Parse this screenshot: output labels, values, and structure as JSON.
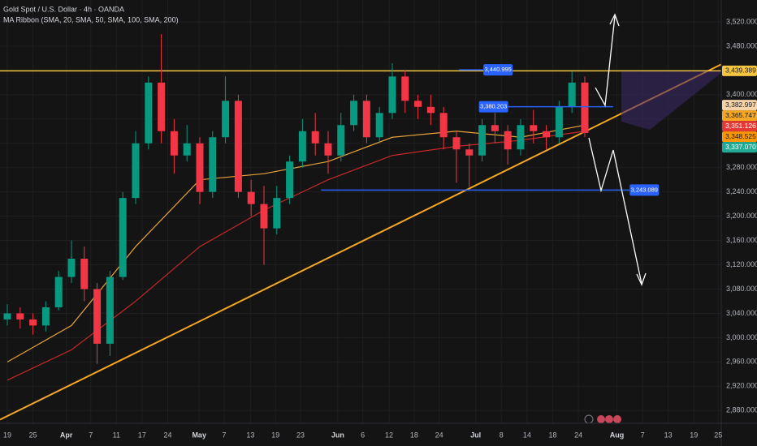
{
  "chart_data": {
    "type": "candlestick",
    "title": "Gold Spot / U.S. Dollar · 4h · OANDA",
    "subtitle": "MA Ribbon (SMA, 20, SMA, 50, SMA, 100, SMA, 200)",
    "x": [
      0,
      2,
      4,
      6,
      8,
      10,
      12,
      14,
      16,
      18,
      20,
      22,
      24,
      26,
      28,
      30,
      32,
      34,
      36,
      38,
      40,
      42,
      44,
      46,
      48,
      50,
      52,
      54,
      56,
      58,
      60,
      62,
      64,
      66,
      68,
      70,
      72,
      74,
      76,
      78,
      80,
      82,
      84,
      86,
      88,
      90
    ],
    "open": [
      3030,
      3040,
      3030,
      3020,
      3050,
      3100,
      3130,
      3080,
      2990,
      3100,
      3230,
      3320,
      3420,
      3340,
      3300,
      3320,
      3240,
      3330,
      3390,
      3240,
      3220,
      3180,
      3230,
      3290,
      3340,
      3320,
      3300,
      3350,
      3390,
      3330,
      3370,
      3430,
      3390,
      3380,
      3370,
      3330,
      3310,
      3300,
      3350,
      3340,
      3310,
      3350,
      3340,
      3330,
      3380,
      3420
    ],
    "high": [
      3055,
      3050,
      3040,
      3060,
      3110,
      3160,
      3150,
      3090,
      3110,
      3240,
      3340,
      3430,
      3500,
      3360,
      3350,
      3330,
      3340,
      3430,
      3400,
      3260,
      3250,
      3250,
      3300,
      3360,
      3370,
      3340,
      3370,
      3400,
      3400,
      3380,
      3452,
      3440,
      3400,
      3400,
      3380,
      3340,
      3320,
      3360,
      3370,
      3350,
      3360,
      3375,
      3350,
      3390,
      3438,
      3430
    ],
    "low": [
      3020,
      3015,
      3005,
      3010,
      3045,
      3090,
      3060,
      2957,
      2970,
      3095,
      3220,
      3310,
      3320,
      3270,
      3290,
      3220,
      3230,
      3320,
      3230,
      3200,
      3120,
      3170,
      3220,
      3280,
      3300,
      3270,
      3290,
      3340,
      3320,
      3320,
      3360,
      3370,
      3360,
      3350,
      3310,
      3255,
      3248,
      3290,
      3320,
      3285,
      3300,
      3320,
      3310,
      3320,
      3370,
      3330
    ],
    "close": [
      3040,
      3030,
      3020,
      3050,
      3100,
      3130,
      3080,
      2990,
      3100,
      3230,
      3320,
      3420,
      3340,
      3300,
      3320,
      3240,
      3330,
      3390,
      3240,
      3220,
      3180,
      3230,
      3290,
      3340,
      3320,
      3300,
      3350,
      3390,
      3330,
      3370,
      3430,
      3390,
      3380,
      3370,
      3330,
      3310,
      3300,
      3350,
      3340,
      3310,
      3350,
      3340,
      3330,
      3380,
      3420,
      3337
    ],
    "up_color": "#089981",
    "down_color": "#f23645",
    "moving_averages": [
      {
        "color": "#e8a23a",
        "x": [
          0,
          10,
          20,
          30,
          40,
          50,
          60,
          70,
          80,
          90
        ],
        "values": [
          2960,
          3020,
          3150,
          3260,
          3270,
          3290,
          3330,
          3340,
          3330,
          3350
        ]
      },
      {
        "color": "#c62828",
        "x": [
          0,
          10,
          20,
          30,
          40,
          50,
          60,
          70,
          80,
          90
        ],
        "values": [
          2930,
          2980,
          3060,
          3150,
          3210,
          3260,
          3300,
          3315,
          3325,
          3340
        ]
      }
    ],
    "resistance": {
      "value": 3439.389,
      "color": "#f5c542"
    },
    "trendline": {
      "x": [
        -1.14,
        111.27
      ],
      "values": [
        2865,
        3450
      ],
      "color": "#f5a623"
    },
    "levels": [
      {
        "value": 3440.995,
        "label": "3,440.995",
        "x": [
          70.4,
          74.2
        ]
      },
      {
        "value": 3380.203,
        "label": "3,380.203",
        "x": [
          73.5,
          94.4
        ]
      },
      {
        "value": 3243.089,
        "label": "3,243.089",
        "x": [
          48.9,
          97
        ]
      }
    ],
    "price_labels": [
      {
        "value": 3439.389,
        "label": "3,439.389",
        "color": "#f5c542"
      },
      {
        "value": 3382.997,
        "label": "3,382.997",
        "color": "#f7d4a8"
      },
      {
        "value": 3365.747,
        "label": "3,365.747",
        "color": "#f5a623"
      },
      {
        "value": 3351.126,
        "label": "3,351.126",
        "color": "#e53935"
      },
      {
        "value": 3348.525,
        "label": "3,348.525",
        "color": "#ff9800"
      },
      {
        "value": 3337.07,
        "label": "3,337.070",
        "color": "#22ab94"
      }
    ],
    "xlim": [
      -1.14,
      111.27
    ],
    "ylim": [
      2859,
      3556
    ],
    "grid": true,
    "xticks": [
      {
        "value": 0,
        "label": "19"
      },
      {
        "value": 4,
        "label": "25"
      },
      {
        "value": 9.2,
        "label": "Apr"
      },
      {
        "value": 13,
        "label": "7"
      },
      {
        "value": 17,
        "label": "11"
      },
      {
        "value": 21,
        "label": "17"
      },
      {
        "value": 25,
        "label": "24"
      },
      {
        "value": 29.9,
        "label": "May"
      },
      {
        "value": 33.8,
        "label": "7"
      },
      {
        "value": 37.9,
        "label": "13"
      },
      {
        "value": 41.8,
        "label": "19"
      },
      {
        "value": 45.7,
        "label": "23"
      },
      {
        "value": 51.5,
        "label": "Jun"
      },
      {
        "value": 55.4,
        "label": "6"
      },
      {
        "value": 59.5,
        "label": "12"
      },
      {
        "value": 63.4,
        "label": "18"
      },
      {
        "value": 67.3,
        "label": "24"
      },
      {
        "value": 73,
        "label": "Jul"
      },
      {
        "value": 77,
        "label": "8"
      },
      {
        "value": 81,
        "label": "14"
      },
      {
        "value": 85,
        "label": "18"
      },
      {
        "value": 89,
        "label": "24"
      },
      {
        "value": 95,
        "label": "Aug"
      },
      {
        "value": 99,
        "label": "7"
      },
      {
        "value": 103,
        "label": "13"
      },
      {
        "value": 107,
        "label": "19"
      },
      {
        "value": 110.8,
        "label": "25"
      }
    ],
    "yticks": [
      {
        "value": 2880,
        "label": "2,880.000"
      },
      {
        "value": 2920,
        "label": "2,920.000"
      },
      {
        "value": 2960,
        "label": "2,960.000"
      },
      {
        "value": 3000,
        "label": "3,000.000"
      },
      {
        "value": 3040,
        "label": "3,040.000"
      },
      {
        "value": 3080,
        "label": "3,080.000"
      },
      {
        "value": 3120,
        "label": "3,120.000"
      },
      {
        "value": 3160,
        "label": "3,160.000"
      },
      {
        "value": 3200,
        "label": "3,200.000"
      },
      {
        "value": 3240,
        "label": "3,240.000"
      },
      {
        "value": 3280,
        "label": "3,280.000"
      },
      {
        "value": 3320,
        "label": "3,320.000"
      },
      {
        "value": 3360,
        "label": "3,360.000"
      },
      {
        "value": 3400,
        "label": "3,400.000"
      },
      {
        "value": 3440,
        "label": "3,440.000"
      },
      {
        "value": 3480,
        "label": "3,480.000"
      },
      {
        "value": 3520,
        "label": "3,520.000"
      }
    ]
  }
}
